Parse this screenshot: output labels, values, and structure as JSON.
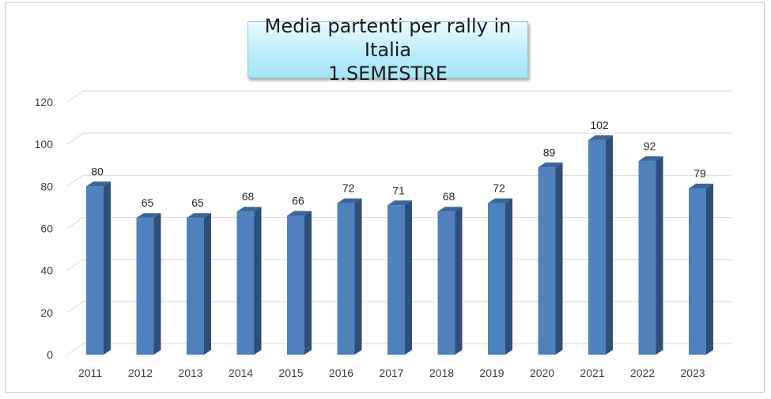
{
  "chart_data": {
    "type": "bar",
    "title": "Media partenti per rally in Italia",
    "subtitle": "1.SEMESTRE",
    "categories": [
      "2011",
      "2012",
      "2013",
      "2014",
      "2015",
      "2016",
      "2017",
      "2018",
      "2019",
      "2020",
      "2021",
      "2022",
      "2023"
    ],
    "values": [
      80,
      65,
      65,
      68,
      66,
      72,
      71,
      68,
      72,
      89,
      102,
      92,
      79
    ],
    "ylim": [
      0,
      120
    ],
    "yticks": [
      0,
      20,
      40,
      60,
      80,
      100,
      120
    ],
    "grid": true,
    "legend": "none",
    "colors": {
      "bar_front": "#4f81bd",
      "bar_side": "#2e4f7a",
      "bar_top": "#3a6699",
      "grid": "#d9d9d9"
    }
  }
}
